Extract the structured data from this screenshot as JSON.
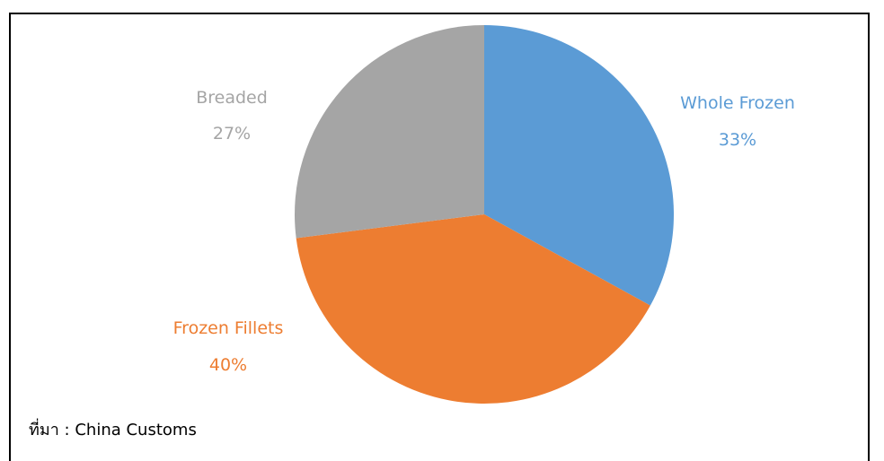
{
  "chart_data": {
    "type": "pie",
    "slices": [
      {
        "label": "Whole Frozen",
        "value": 33,
        "value_label": "33%",
        "color": "#5B9BD5"
      },
      {
        "label": "Frozen Fillets",
        "value": 40,
        "value_label": "40%",
        "color": "#ED7D31"
      },
      {
        "label": "Breaded",
        "value": 27,
        "value_label": "27%",
        "color": "#A5A5A5"
      }
    ],
    "start_angle": "12 o'clock",
    "direction": "clockwise",
    "legend": "none",
    "labels": "outside"
  },
  "source": {
    "text": "ที่มา : China Customs"
  }
}
